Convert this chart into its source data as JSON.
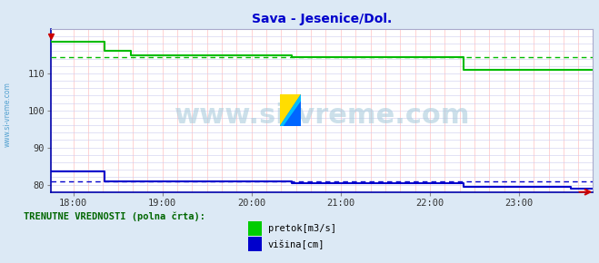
{
  "title": "Sava - Jesenice/Dol.",
  "title_color": "#0000cc",
  "bg_color": "#dce9f5",
  "plot_bg_color": "#ffffff",
  "xlim_hours": [
    17.75,
    23.83
  ],
  "ylim": [
    78,
    122
  ],
  "yticks": [
    80,
    90,
    100,
    110
  ],
  "xtick_labels": [
    "18:00",
    "19:00",
    "20:00",
    "21:00",
    "22:00",
    "23:00"
  ],
  "xtick_positions": [
    18.0,
    19.0,
    20.0,
    21.0,
    22.0,
    23.0
  ],
  "green_line_x": [
    17.75,
    18.35,
    18.35,
    18.65,
    18.65,
    20.45,
    20.45,
    22.38,
    22.38,
    23.83
  ],
  "green_line_y": [
    118.5,
    118.5,
    116.0,
    116.0,
    115.0,
    115.0,
    114.5,
    114.5,
    111.0,
    111.0
  ],
  "blue_line_x": [
    17.75,
    18.35,
    18.35,
    20.45,
    20.45,
    22.38,
    22.38,
    23.58,
    23.58,
    23.83
  ],
  "blue_line_y": [
    83.5,
    83.5,
    80.8,
    80.8,
    80.3,
    80.3,
    79.5,
    79.5,
    79.0,
    79.0
  ],
  "green_avg": 114.5,
  "blue_avg": 80.8,
  "green_color": "#00bb00",
  "blue_color": "#0000cc",
  "red_marker_x": 17.75,
  "red_marker_y": 120.0,
  "watermark_text": "www.si-vreme.com",
  "sidebar_text": "www.si-vreme.com",
  "sidebar_color": "#4499cc",
  "legend_text_pretok": "pretok[m3/s]",
  "legend_text_visina": "višina[cm]",
  "legend_green": "#00cc00",
  "legend_blue": "#0000cc",
  "footer_text": "TRENUTNE VREDNOSTI (polna črta):",
  "footer_color": "#006600",
  "vgrid_color": "#ffcccc",
  "hgrid_color": "#ccccee",
  "axis_color": "#0000aa",
  "tick_color": "#333333",
  "right_arrow_color": "#cc0000"
}
